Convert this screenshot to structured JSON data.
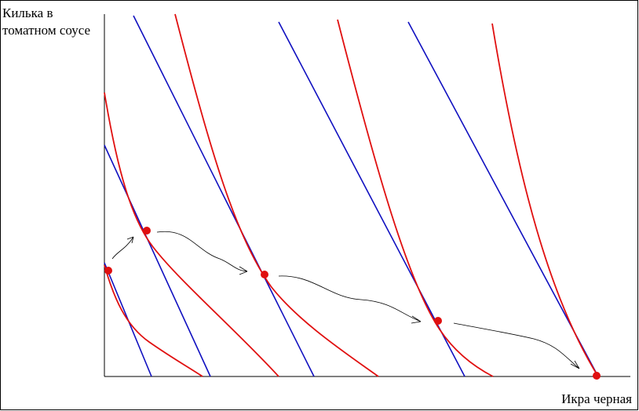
{
  "axes": {
    "y_label": [
      "Килька в",
      "томатном соусе"
    ],
    "x_label": "Икра черная"
  }
}
